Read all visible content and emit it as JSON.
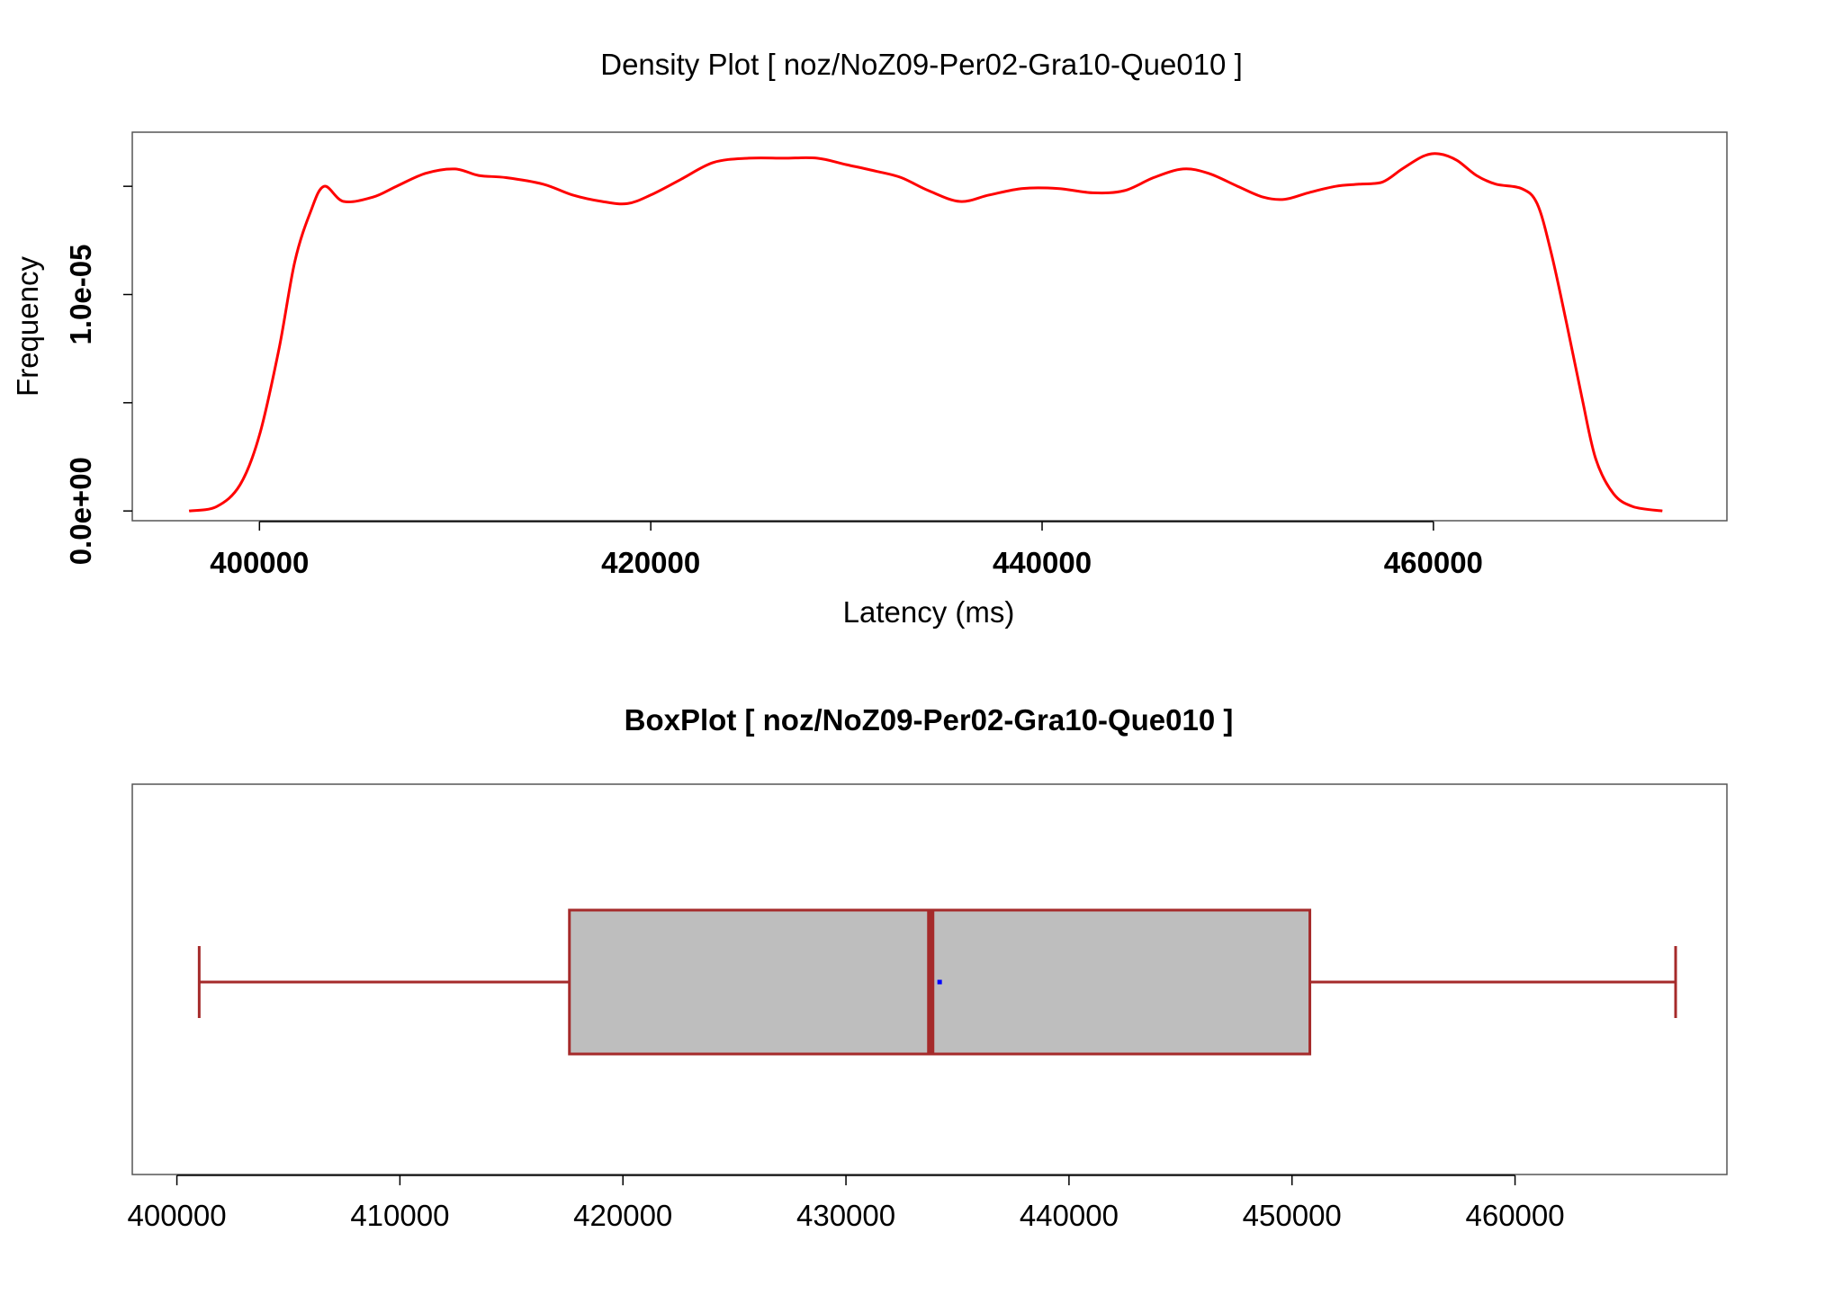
{
  "chart_data": [
    {
      "type": "line",
      "title": "Density Plot [ noz/NoZ09-Per02-Gra10-Que010 ]",
      "xlabel": "Latency (ms)",
      "ylabel": "Frequency",
      "xlim": [
        393500,
        475000
      ],
      "ylim": [
        -4.5e-07,
        1.75e-05
      ],
      "x_ticks": [
        400000,
        420000,
        440000,
        460000
      ],
      "x_tick_labels": [
        "400000",
        "420000",
        "440000",
        "460000"
      ],
      "y_ticks": [
        0,
        5e-06,
        1e-05,
        1.5e-05
      ],
      "y_tick_labels": [
        "0.0e+00",
        "",
        "1.0e-05",
        ""
      ],
      "grid": false,
      "color": "#ff0000",
      "series": [
        {
          "x": [
            396400,
            397800,
            399000,
            400000,
            401000,
            401800,
            402600,
            403300,
            404300,
            405800,
            407000,
            408500,
            410000,
            411200,
            412600,
            414500,
            416000,
            417500,
            418800,
            420000,
            421500,
            423200,
            425000,
            426800,
            428500,
            430000,
            431500,
            432800,
            434200,
            435800,
            437300,
            439000,
            440800,
            442600,
            444200,
            445700,
            447200,
            448500,
            450000,
            451300,
            452400,
            453600,
            455000,
            456200,
            457400,
            458400,
            459500,
            460300,
            461200,
            462200,
            463200,
            464500,
            465300,
            466000,
            466800,
            467600,
            468300,
            469200,
            470200,
            471700
          ],
          "y": [
            0.0,
            2e-07,
            1.2e-06,
            3.5e-06,
            7.5e-06,
            1.15e-05,
            1.38e-05,
            1.5e-05,
            1.43e-05,
            1.45e-05,
            1.5e-05,
            1.56e-05,
            1.58e-05,
            1.55e-05,
            1.54e-05,
            1.51e-05,
            1.46e-05,
            1.43e-05,
            1.42e-05,
            1.46e-05,
            1.53e-05,
            1.61e-05,
            1.63e-05,
            1.63e-05,
            1.63e-05,
            1.6e-05,
            1.57e-05,
            1.54e-05,
            1.48e-05,
            1.43e-05,
            1.46e-05,
            1.49e-05,
            1.49e-05,
            1.47e-05,
            1.48e-05,
            1.54e-05,
            1.58e-05,
            1.56e-05,
            1.5e-05,
            1.45e-05,
            1.44e-05,
            1.47e-05,
            1.5e-05,
            1.51e-05,
            1.52e-05,
            1.58e-05,
            1.64e-05,
            1.65e-05,
            1.62e-05,
            1.55e-05,
            1.51e-05,
            1.49e-05,
            1.42e-05,
            1.2e-05,
            8.7e-06,
            5.2e-06,
            2.4e-06,
            8e-07,
            2e-07,
            0.0
          ]
        }
      ]
    },
    {
      "type": "box",
      "title": "BoxPlot [ noz/NoZ09-Per02-Gra10-Que010 ]",
      "xlim": [
        398000,
        469500
      ],
      "x_ticks": [
        400000,
        410000,
        420000,
        430000,
        440000,
        450000,
        460000
      ],
      "x_tick_labels": [
        "400000",
        "410000",
        "420000",
        "430000",
        "440000",
        "450000",
        "460000"
      ],
      "whisker_low": 401000,
      "q1": 417600,
      "median": 433800,
      "q3": 450800,
      "whisker_high": 467200,
      "mean": 434200,
      "box_fill": "#bebebe",
      "box_stroke": "#a52a2a",
      "mean_color": "#0000ff"
    }
  ]
}
